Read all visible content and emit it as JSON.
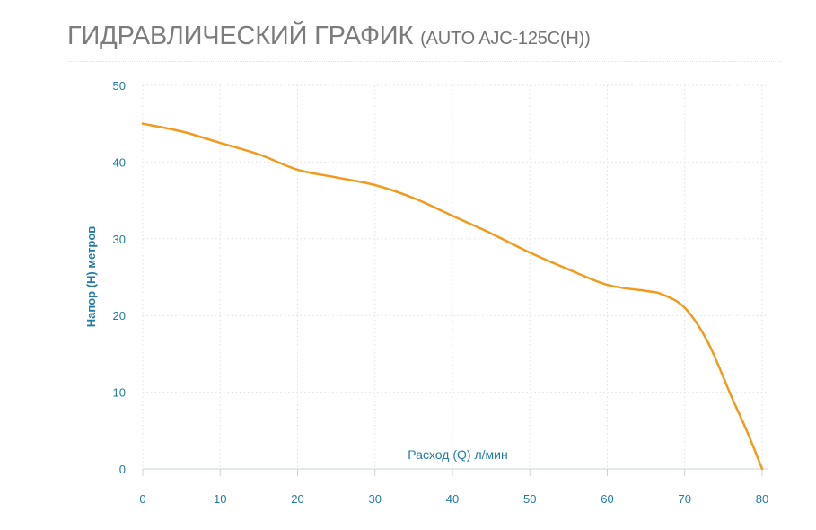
{
  "page": {
    "title_main": "ГИДРАВЛИЧЕСКИЙ ГРАФИК",
    "title_sub": "(AUTO AJC-125C(H))"
  },
  "colors": {
    "curve": "#F29A1E",
    "axis_text": "#1F7BA6",
    "grid": "#E0E0E0",
    "axis_line": "#C8D4DA",
    "title": "#7C7C7C"
  },
  "chart_data": {
    "type": "line",
    "title": "ГИДРАВЛИЧЕСКИЙ ГРАФИК (AUTO AJC-125C(H))",
    "xlabel": "Расход (Q) л/мин",
    "ylabel": "Напор (H) метров",
    "xlim": [
      0,
      80
    ],
    "ylim": [
      0,
      50
    ],
    "x_ticks": [
      0,
      10,
      20,
      30,
      40,
      50,
      60,
      70,
      80
    ],
    "y_ticks": [
      0,
      10,
      20,
      30,
      40,
      50
    ],
    "grid": true,
    "series": [
      {
        "x": [
          0,
          5,
          10,
          15,
          20,
          25,
          30,
          35,
          40,
          45,
          50,
          55,
          60,
          65,
          67,
          70,
          73,
          76,
          78,
          80
        ],
        "y": [
          45,
          44,
          42.5,
          41,
          39,
          38,
          37,
          35.3,
          33,
          30.7,
          28.2,
          26,
          24,
          23.2,
          22.8,
          21,
          16.5,
          9.5,
          5,
          0
        ]
      }
    ]
  }
}
